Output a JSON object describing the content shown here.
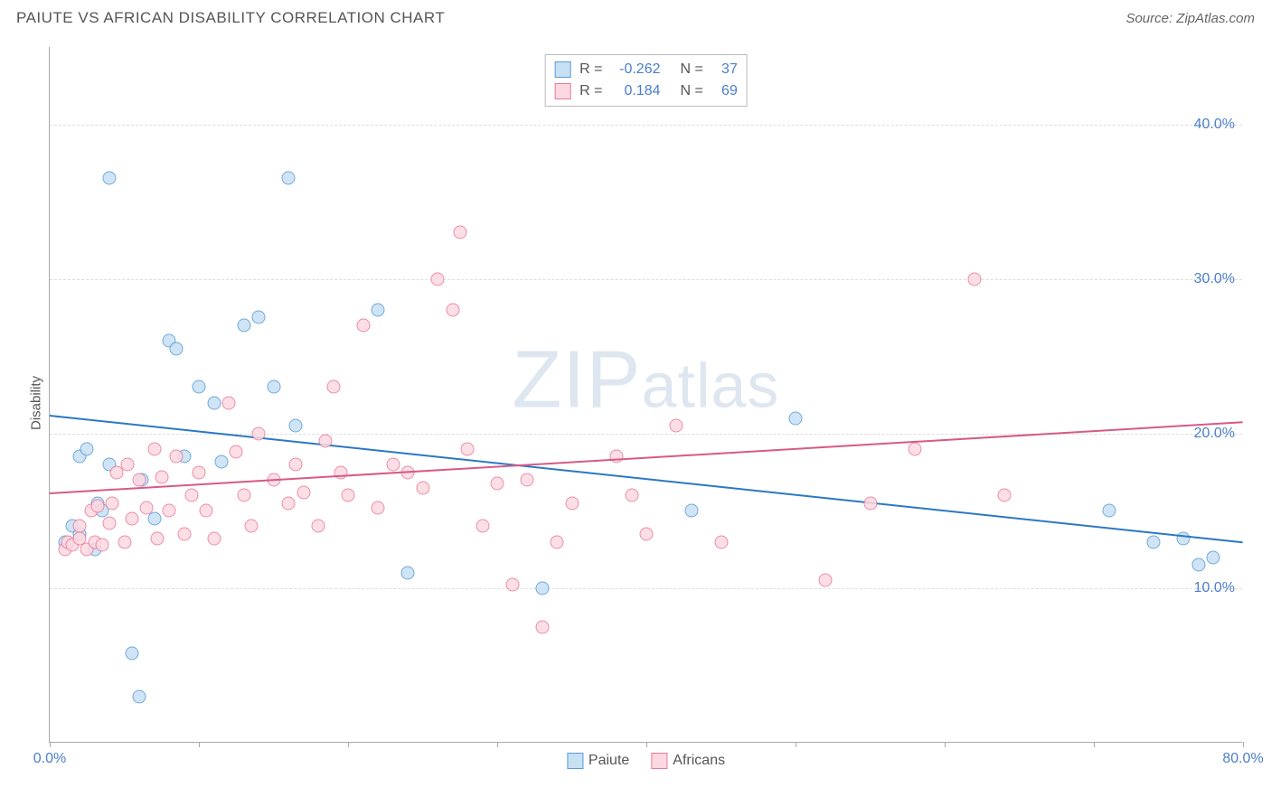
{
  "header": {
    "title": "PAIUTE VS AFRICAN DISABILITY CORRELATION CHART",
    "source": "Source: ZipAtlas.com"
  },
  "ylabel": "Disability",
  "watermark": {
    "big": "ZIP",
    "rest": "atlas"
  },
  "chart": {
    "type": "scatter",
    "xlim": [
      0,
      80
    ],
    "ylim": [
      0,
      45
    ],
    "x_ticks": [
      0,
      10,
      20,
      30,
      40,
      50,
      60,
      70,
      80
    ],
    "x_tick_labels": {
      "0": "0.0%",
      "80": "80.0%"
    },
    "y_gridlines": [
      10,
      20,
      30,
      40
    ],
    "y_tick_labels": {
      "10": "10.0%",
      "20": "20.0%",
      "30": "30.0%",
      "40": "40.0%"
    },
    "grid_color": "#dddddd",
    "axis_color": "#aaaaaa",
    "tick_label_color": "#4a7ec9",
    "point_radius": 7.5,
    "series": [
      {
        "name": "Paiute",
        "fill": "#c7e0f4",
        "stroke": "#5a9bd5",
        "r": -0.262,
        "n": 37,
        "trend": {
          "x1": 0,
          "y1": 21.2,
          "x2": 80,
          "y2": 13.0,
          "color": "#2b78c4",
          "width": 2
        },
        "points": [
          [
            1,
            13
          ],
          [
            1.5,
            14
          ],
          [
            2,
            13.5
          ],
          [
            2,
            18.5
          ],
          [
            2.5,
            19
          ],
          [
            3,
            12.5
          ],
          [
            3.2,
            15.5
          ],
          [
            3.5,
            15
          ],
          [
            4,
            36.5
          ],
          [
            4,
            18
          ],
          [
            5.5,
            5.8
          ],
          [
            6,
            3.0
          ],
          [
            6.2,
            17
          ],
          [
            7,
            14.5
          ],
          [
            8,
            26
          ],
          [
            8.5,
            25.5
          ],
          [
            9,
            18.5
          ],
          [
            10,
            23
          ],
          [
            11,
            22
          ],
          [
            11.5,
            18.2
          ],
          [
            13,
            27
          ],
          [
            14,
            27.5
          ],
          [
            15,
            23
          ],
          [
            16,
            36.5
          ],
          [
            16.5,
            20.5
          ],
          [
            22,
            28
          ],
          [
            24,
            11
          ],
          [
            33,
            10
          ],
          [
            43,
            15
          ],
          [
            50,
            21
          ],
          [
            71,
            15
          ],
          [
            74,
            13
          ],
          [
            76,
            13.2
          ],
          [
            77,
            11.5
          ],
          [
            78,
            12
          ]
        ]
      },
      {
        "name": "Africans",
        "fill": "#fcd9e1",
        "stroke": "#e77a9b",
        "r": 0.184,
        "n": 69,
        "trend": {
          "x1": 0,
          "y1": 16.2,
          "x2": 80,
          "y2": 20.8,
          "color": "#d65a86",
          "width": 2
        },
        "points": [
          [
            1,
            12.5
          ],
          [
            1.2,
            13
          ],
          [
            1.5,
            12.8
          ],
          [
            2,
            13.2
          ],
          [
            2,
            14
          ],
          [
            2.5,
            12.5
          ],
          [
            2.8,
            15
          ],
          [
            3,
            13
          ],
          [
            3.2,
            15.3
          ],
          [
            3.5,
            12.8
          ],
          [
            4,
            14.2
          ],
          [
            4.2,
            15.5
          ],
          [
            4.5,
            17.5
          ],
          [
            5,
            13
          ],
          [
            5.2,
            18
          ],
          [
            5.5,
            14.5
          ],
          [
            6,
            17
          ],
          [
            6.5,
            15.2
          ],
          [
            7,
            19
          ],
          [
            7.2,
            13.2
          ],
          [
            7.5,
            17.2
          ],
          [
            8,
            15
          ],
          [
            8.5,
            18.5
          ],
          [
            9,
            13.5
          ],
          [
            9.5,
            16
          ],
          [
            10,
            17.5
          ],
          [
            10.5,
            15
          ],
          [
            11,
            13.2
          ],
          [
            12,
            22
          ],
          [
            12.5,
            18.8
          ],
          [
            13,
            16
          ],
          [
            13.5,
            14
          ],
          [
            14,
            20
          ],
          [
            15,
            17
          ],
          [
            16,
            15.5
          ],
          [
            16.5,
            18
          ],
          [
            17,
            16.2
          ],
          [
            18,
            14
          ],
          [
            18.5,
            19.5
          ],
          [
            19,
            23
          ],
          [
            19.5,
            17.5
          ],
          [
            20,
            16
          ],
          [
            21,
            27
          ],
          [
            22,
            15.2
          ],
          [
            23,
            18
          ],
          [
            24,
            17.5
          ],
          [
            25,
            16.5
          ],
          [
            26,
            30
          ],
          [
            27,
            28
          ],
          [
            27.5,
            33
          ],
          [
            28,
            19
          ],
          [
            29,
            14
          ],
          [
            30,
            16.8
          ],
          [
            31,
            10.2
          ],
          [
            32,
            17
          ],
          [
            33,
            7.5
          ],
          [
            34,
            13
          ],
          [
            35,
            15.5
          ],
          [
            38,
            18.5
          ],
          [
            39,
            16
          ],
          [
            40,
            13.5
          ],
          [
            42,
            20.5
          ],
          [
            45,
            13
          ],
          [
            52,
            10.5
          ],
          [
            55,
            15.5
          ],
          [
            58,
            19
          ],
          [
            62,
            30
          ],
          [
            64,
            16
          ]
        ]
      }
    ]
  },
  "stats_labels": {
    "r": "R =",
    "n": "N ="
  },
  "legend": [
    {
      "label": "Paiute",
      "fill": "#c7e0f4",
      "stroke": "#5a9bd5"
    },
    {
      "label": "Africans",
      "fill": "#fcd9e1",
      "stroke": "#e77a9b"
    }
  ]
}
